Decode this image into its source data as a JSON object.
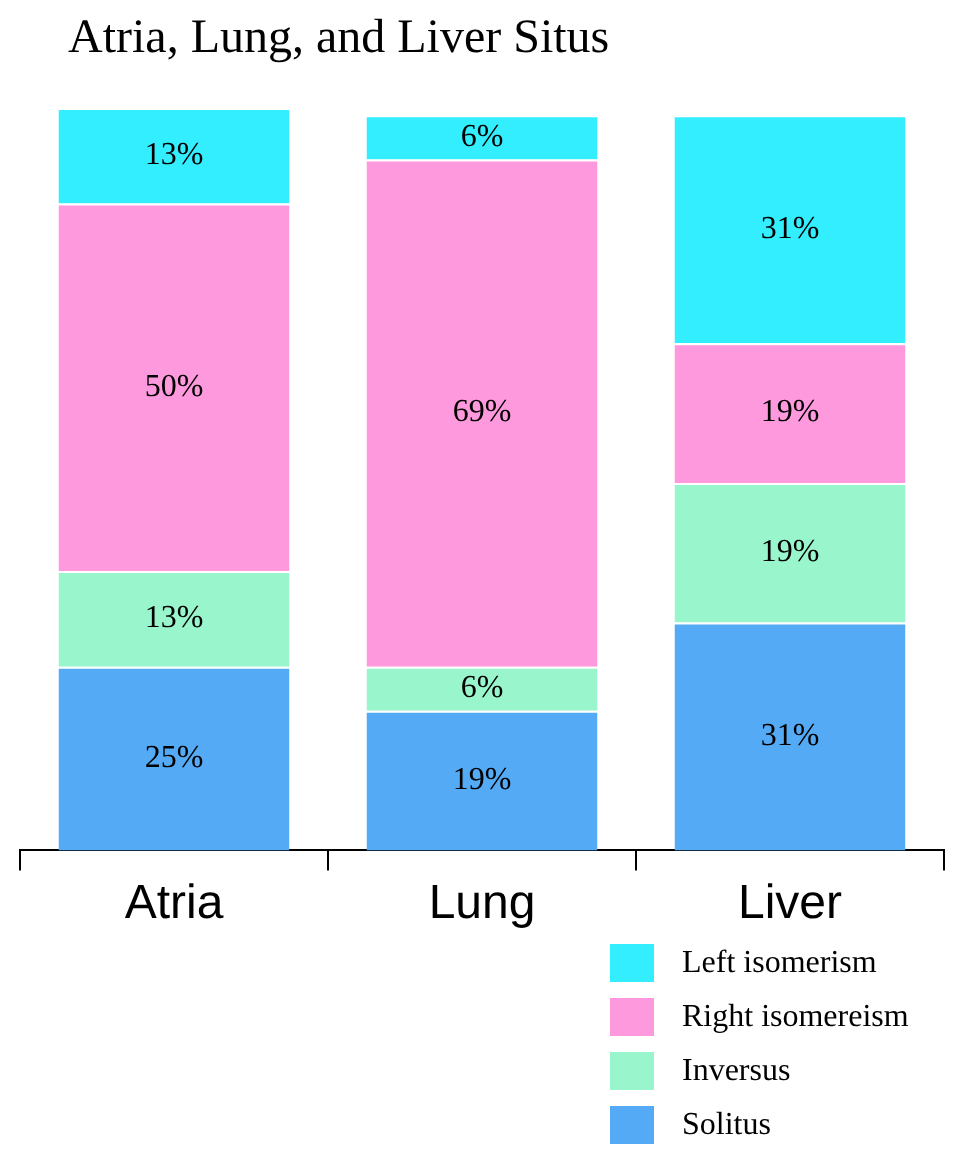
{
  "chart_data": {
    "type": "bar",
    "title": "Atria, Lung, and Liver Situs",
    "categories": [
      "Atria",
      "Lung",
      "Liver"
    ],
    "stacked": true,
    "legend": "bottom right",
    "grid": false,
    "tick_labels": "x",
    "series": [
      {
        "name": "Solitus",
        "color": "#55aaf5",
        "values": [
          25,
          19,
          31
        ],
        "value_labels": [
          "25%",
          "19%",
          "31%"
        ]
      },
      {
        "name": "Inversus",
        "color": "#99f5cc",
        "values": [
          13,
          6,
          19
        ],
        "value_labels": [
          "13%",
          "6%",
          "19%"
        ]
      },
      {
        "name": "Right isomereism",
        "color": "#ff99dd",
        "values": [
          50,
          69,
          19
        ],
        "value_labels": [
          "50%",
          "69%",
          "19%"
        ]
      },
      {
        "name": "Left isomerism",
        "color": "#33eeff",
        "values": [
          13,
          6,
          31
        ],
        "value_labels": [
          "13%",
          "6%",
          "31%"
        ]
      }
    ]
  }
}
